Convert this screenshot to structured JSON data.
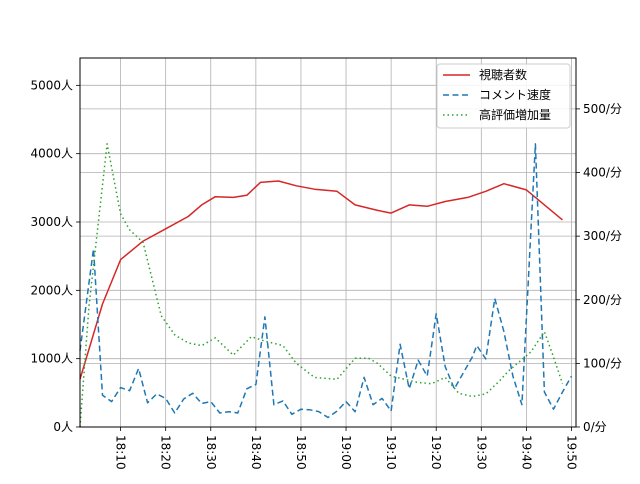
{
  "chart_data": {
    "type": "line",
    "title": "",
    "xlabel": "",
    "ylabel": "",
    "x_ticks": [
      "18:10",
      "18:20",
      "18:30",
      "18:40",
      "18:50",
      "19:00",
      "19:10",
      "19:20",
      "19:30",
      "19:40",
      "19:50"
    ],
    "x_range": [
      "18:01",
      "19:51"
    ],
    "y_left": {
      "range": [
        0,
        5400
      ],
      "ticks": [
        0,
        1000,
        2000,
        3000,
        4000,
        5000
      ],
      "tick_labels": [
        "0人",
        "1000人",
        "2000人",
        "3000人",
        "4000人",
        "5000人"
      ]
    },
    "y_right": {
      "range": [
        0,
        580
      ],
      "ticks": [
        0,
        100,
        200,
        300,
        400,
        500
      ],
      "tick_labels": [
        "0/分",
        "100/分",
        "200/分",
        "300/分",
        "400/分",
        "500/分"
      ]
    },
    "grid": true,
    "legend_position": "top-right",
    "series": [
      {
        "name": "視聴者数",
        "axis": "left",
        "color": "#d62728",
        "style": "solid",
        "points": [
          [
            "18:01",
            700
          ],
          [
            "18:06",
            1800
          ],
          [
            "18:10",
            2450
          ],
          [
            "18:15",
            2720
          ],
          [
            "18:20",
            2900
          ],
          [
            "18:25",
            3080
          ],
          [
            "18:28",
            3250
          ],
          [
            "18:31",
            3370
          ],
          [
            "18:35",
            3360
          ],
          [
            "18:38",
            3390
          ],
          [
            "18:41",
            3580
          ],
          [
            "18:45",
            3600
          ],
          [
            "18:49",
            3530
          ],
          [
            "18:53",
            3480
          ],
          [
            "18:58",
            3450
          ],
          [
            "19:02",
            3250
          ],
          [
            "19:07",
            3170
          ],
          [
            "19:10",
            3130
          ],
          [
            "19:14",
            3250
          ],
          [
            "19:18",
            3230
          ],
          [
            "19:22",
            3300
          ],
          [
            "19:27",
            3360
          ],
          [
            "19:31",
            3450
          ],
          [
            "19:35",
            3560
          ],
          [
            "19:40",
            3470
          ],
          [
            "19:48",
            3030
          ]
        ]
      },
      {
        "name": "コメント速度",
        "axis": "right",
        "color": "#1f77b4",
        "style": "dashed",
        "points": [
          [
            "18:01",
            120
          ],
          [
            "18:04",
            280
          ],
          [
            "18:06",
            50
          ],
          [
            "18:08",
            40
          ],
          [
            "18:10",
            62
          ],
          [
            "18:12",
            57
          ],
          [
            "18:14",
            92
          ],
          [
            "18:16",
            38
          ],
          [
            "18:18",
            52
          ],
          [
            "18:20",
            45
          ],
          [
            "18:22",
            22
          ],
          [
            "18:24",
            44
          ],
          [
            "18:26",
            53
          ],
          [
            "18:28",
            37
          ],
          [
            "18:30",
            40
          ],
          [
            "18:32",
            22
          ],
          [
            "18:34",
            24
          ],
          [
            "18:36",
            22
          ],
          [
            "18:38",
            60
          ],
          [
            "18:40",
            67
          ],
          [
            "18:42",
            173
          ],
          [
            "18:44",
            35
          ],
          [
            "18:46",
            41
          ],
          [
            "18:48",
            20
          ],
          [
            "18:50",
            28
          ],
          [
            "18:52",
            27
          ],
          [
            "18:54",
            24
          ],
          [
            "18:56",
            15
          ],
          [
            "18:58",
            25
          ],
          [
            "19:00",
            40
          ],
          [
            "19:02",
            24
          ],
          [
            "19:04",
            78
          ],
          [
            "19:06",
            35
          ],
          [
            "19:08",
            45
          ],
          [
            "19:10",
            25
          ],
          [
            "19:12",
            130
          ],
          [
            "19:14",
            60
          ],
          [
            "19:16",
            105
          ],
          [
            "19:18",
            80
          ],
          [
            "19:20",
            178
          ],
          [
            "19:22",
            95
          ],
          [
            "19:24",
            60
          ],
          [
            "19:26",
            85
          ],
          [
            "19:28",
            110
          ],
          [
            "19:29",
            128
          ],
          [
            "19:31",
            107
          ],
          [
            "19:33",
            202
          ],
          [
            "19:35",
            150
          ],
          [
            "19:37",
            80
          ],
          [
            "19:39",
            35
          ],
          [
            "19:42",
            445
          ],
          [
            "19:44",
            55
          ],
          [
            "19:46",
            28
          ],
          [
            "19:48",
            55
          ],
          [
            "19:50",
            80
          ]
        ]
      },
      {
        "name": "高評価増加量",
        "axis": "right",
        "color": "#2ca02c",
        "style": "dotted",
        "points": [
          [
            "18:01",
            0
          ],
          [
            "18:03",
            190
          ],
          [
            "18:07",
            445
          ],
          [
            "18:10",
            335
          ],
          [
            "18:12",
            310
          ],
          [
            "18:15",
            290
          ],
          [
            "18:19",
            175
          ],
          [
            "18:22",
            145
          ],
          [
            "18:25",
            132
          ],
          [
            "18:28",
            128
          ],
          [
            "18:31",
            140
          ],
          [
            "18:35",
            113
          ],
          [
            "18:39",
            142
          ],
          [
            "18:42",
            135
          ],
          [
            "18:46",
            128
          ],
          [
            "18:49",
            100
          ],
          [
            "18:53",
            78
          ],
          [
            "18:58",
            75
          ],
          [
            "19:02",
            108
          ],
          [
            "19:05",
            108
          ],
          [
            "19:07",
            100
          ],
          [
            "19:10",
            80
          ],
          [
            "19:13",
            75
          ],
          [
            "19:16",
            70
          ],
          [
            "19:19",
            68
          ],
          [
            "19:22",
            78
          ],
          [
            "19:25",
            53
          ],
          [
            "19:28",
            48
          ],
          [
            "19:31",
            52
          ],
          [
            "19:34",
            72
          ],
          [
            "19:36",
            88
          ],
          [
            "19:38",
            100
          ],
          [
            "19:41",
            118
          ],
          [
            "19:44",
            150
          ],
          [
            "19:46",
            110
          ],
          [
            "19:48",
            68
          ]
        ]
      }
    ]
  }
}
